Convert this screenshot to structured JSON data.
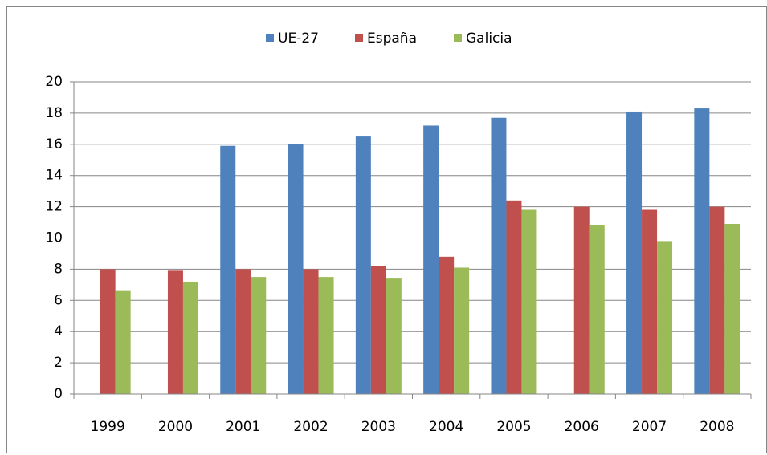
{
  "chart_data": {
    "type": "bar",
    "categories": [
      "1999",
      "2000",
      "2001",
      "2002",
      "2003",
      "2004",
      "2005",
      "2006",
      "2007",
      "2008"
    ],
    "series": [
      {
        "name": "UE-27",
        "color": "#4f81bd",
        "values": [
          null,
          null,
          15.9,
          16.0,
          16.5,
          17.2,
          17.7,
          null,
          18.1,
          18.3
        ]
      },
      {
        "name": "España",
        "color": "#c0504d",
        "values": [
          8.0,
          7.9,
          8.0,
          8.0,
          8.2,
          8.8,
          12.4,
          12.0,
          11.8,
          12.0
        ]
      },
      {
        "name": "Galicia",
        "color": "#9bbb59",
        "values": [
          6.6,
          7.2,
          7.5,
          7.5,
          7.4,
          8.1,
          11.8,
          10.8,
          9.8,
          10.9
        ]
      }
    ],
    "ylim": [
      0,
      20
    ],
    "yticks": [
      0,
      2,
      4,
      6,
      8,
      10,
      12,
      14,
      16,
      18,
      20
    ],
    "grid": true,
    "legend": "top"
  }
}
